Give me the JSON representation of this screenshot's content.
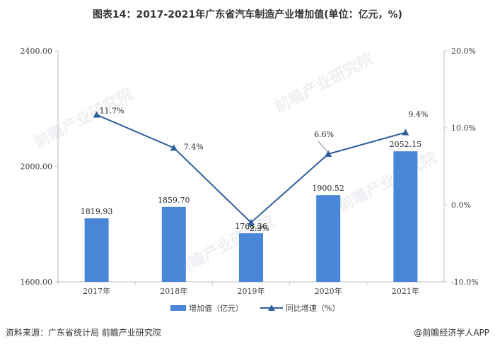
{
  "title": "图表14：2017-2021年广东省汽车制造产业增加值(单位：亿元，%)",
  "source": "资料来源：广东省统计局 前瞻产业研究院",
  "credit": "@前瞻经济学人APP",
  "watermark": "前瞻产业研究院",
  "chart_data": {
    "type": "bar",
    "categories": [
      "2017年",
      "2018年",
      "2019年",
      "2020年",
      "2021年"
    ],
    "series": [
      {
        "name": "增加值（亿元）",
        "type": "bar",
        "axis": "left",
        "values": [
          1819.93,
          1859.7,
          1768.36,
          1900.52,
          2052.15
        ],
        "labels": [
          "1819.93",
          "1859.70",
          "1768.36",
          "1900.52",
          "2052.15"
        ],
        "color": "#4a86d8"
      },
      {
        "name": "同比增速（%）",
        "type": "line",
        "axis": "right",
        "values": [
          11.7,
          7.4,
          -2.3,
          6.6,
          9.4
        ],
        "labels": [
          "11.7%",
          "7.4%",
          "-2.3%",
          "6.6%",
          "9.4%"
        ],
        "color": "#2e5e9e"
      }
    ],
    "y_left": {
      "range": [
        1600,
        2400
      ],
      "ticks": [
        "1600.00",
        "2000.00",
        "2400.00"
      ],
      "tick_values": [
        1600,
        2000,
        2400
      ]
    },
    "y_right": {
      "range": [
        -10,
        20
      ],
      "ticks": [
        "-10.0%",
        "0.0%",
        "10.0%",
        "20.0%"
      ],
      "tick_values": [
        -10,
        0,
        10,
        20
      ]
    },
    "grid": false,
    "legend_position": "bottom"
  }
}
